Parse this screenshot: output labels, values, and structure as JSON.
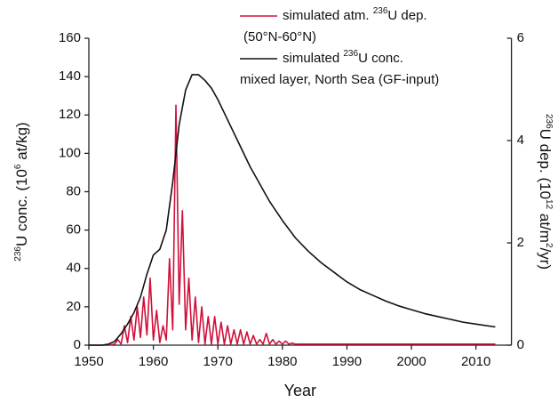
{
  "chart_data": {
    "type": "line",
    "xlabel": "Year",
    "ylabel": [
      {
        "text": "236",
        "sup": true
      },
      {
        "text": "U conc. (10"
      },
      {
        "text": "6",
        "sup": true
      },
      {
        "text": " at/kg)"
      }
    ],
    "y2label": [
      {
        "text": "236",
        "sup": true
      },
      {
        "text": "U dep. (10"
      },
      {
        "text": "12",
        "sup": true
      },
      {
        "text": " at/m"
      },
      {
        "text": "2",
        "sup": true
      },
      {
        "text": "/yr)"
      }
    ],
    "xlim": [
      1950,
      2015.5
    ],
    "xticks": [
      1950,
      1960,
      1970,
      1980,
      1990,
      2000,
      2010
    ],
    "ylim": [
      0,
      160
    ],
    "yticks": [
      0,
      20,
      40,
      60,
      80,
      100,
      120,
      140,
      160
    ],
    "y2lim": [
      0,
      6
    ],
    "y2ticks": [
      0,
      2,
      4,
      6
    ],
    "series": [
      {
        "name": [
          {
            "text": "simulated atm. "
          },
          {
            "text": "236",
            "sup": true
          },
          {
            "text": "U dep."
          }
        ],
        "name_line2": "(50°N-60°N)",
        "color": "#d0103a",
        "axis": "y2",
        "x": [
          1950,
          1953,
          1954,
          1954.5,
          1955,
          1955.5,
          1956,
          1956.5,
          1957,
          1957.5,
          1958,
          1958.5,
          1959,
          1959.5,
          1960,
          1960.5,
          1961,
          1961.5,
          1962,
          1962.5,
          1963,
          1963.5,
          1964,
          1964.5,
          1965,
          1965.5,
          1966,
          1966.5,
          1967,
          1967.5,
          1968,
          1968.5,
          1969,
          1969.5,
          1970,
          1970.5,
          1971,
          1971.5,
          1972,
          1972.5,
          1973,
          1973.5,
          1974,
          1974.5,
          1975,
          1975.5,
          1976,
          1976.5,
          1977,
          1977.5,
          1978,
          1978.5,
          1979,
          1979.5,
          1980,
          1980.5,
          1981,
          1981.5,
          1982,
          1990,
          2000,
          2013
        ],
        "values": [
          0,
          0,
          0.02,
          0.11,
          0.02,
          0.38,
          0.05,
          0.56,
          0.1,
          0.75,
          0.15,
          0.94,
          0.2,
          1.31,
          0.1,
          0.68,
          0.05,
          0.38,
          0.1,
          1.69,
          0.3,
          4.69,
          0.8,
          2.63,
          0.3,
          1.31,
          0.1,
          0.94,
          0.05,
          0.75,
          0.02,
          0.56,
          0.02,
          0.56,
          0.02,
          0.45,
          0.02,
          0.38,
          0.02,
          0.3,
          0.02,
          0.3,
          0.02,
          0.26,
          0.02,
          0.19,
          0.02,
          0.11,
          0.02,
          0.23,
          0.02,
          0.11,
          0.02,
          0.08,
          0.02,
          0.08,
          0.02,
          0.04,
          0.02,
          0.02,
          0.02,
          0.02
        ]
      },
      {
        "name": [
          {
            "text": "simulated "
          },
          {
            "text": "236",
            "sup": true
          },
          {
            "text": "U conc."
          }
        ],
        "name_line2": "mixed layer, North Sea (GF-input)",
        "color": "#111111",
        "axis": "y",
        "x": [
          1950,
          1952,
          1953,
          1954,
          1955,
          1956,
          1957,
          1958,
          1959,
          1960,
          1961,
          1962,
          1963,
          1964,
          1965,
          1966,
          1967,
          1968,
          1969,
          1970,
          1971,
          1972,
          1973,
          1974,
          1975,
          1976,
          1977,
          1978,
          1979,
          1980,
          1982,
          1984,
          1986,
          1988,
          1990,
          1992,
          1994,
          1996,
          1998,
          2000,
          2002,
          2004,
          2006,
          2008,
          2010,
          2013
        ],
        "values": [
          0,
          0,
          0.5,
          2,
          6,
          11,
          17,
          25,
          37,
          47,
          50,
          60,
          85,
          115,
          133,
          141,
          141,
          138,
          134,
          128,
          121,
          114,
          107,
          100,
          93,
          87,
          81,
          75,
          70,
          65,
          56,
          49,
          43,
          38,
          33,
          29,
          26,
          23,
          20.5,
          18.5,
          16.5,
          15,
          13.5,
          12,
          11,
          9.5
        ]
      }
    ]
  }
}
